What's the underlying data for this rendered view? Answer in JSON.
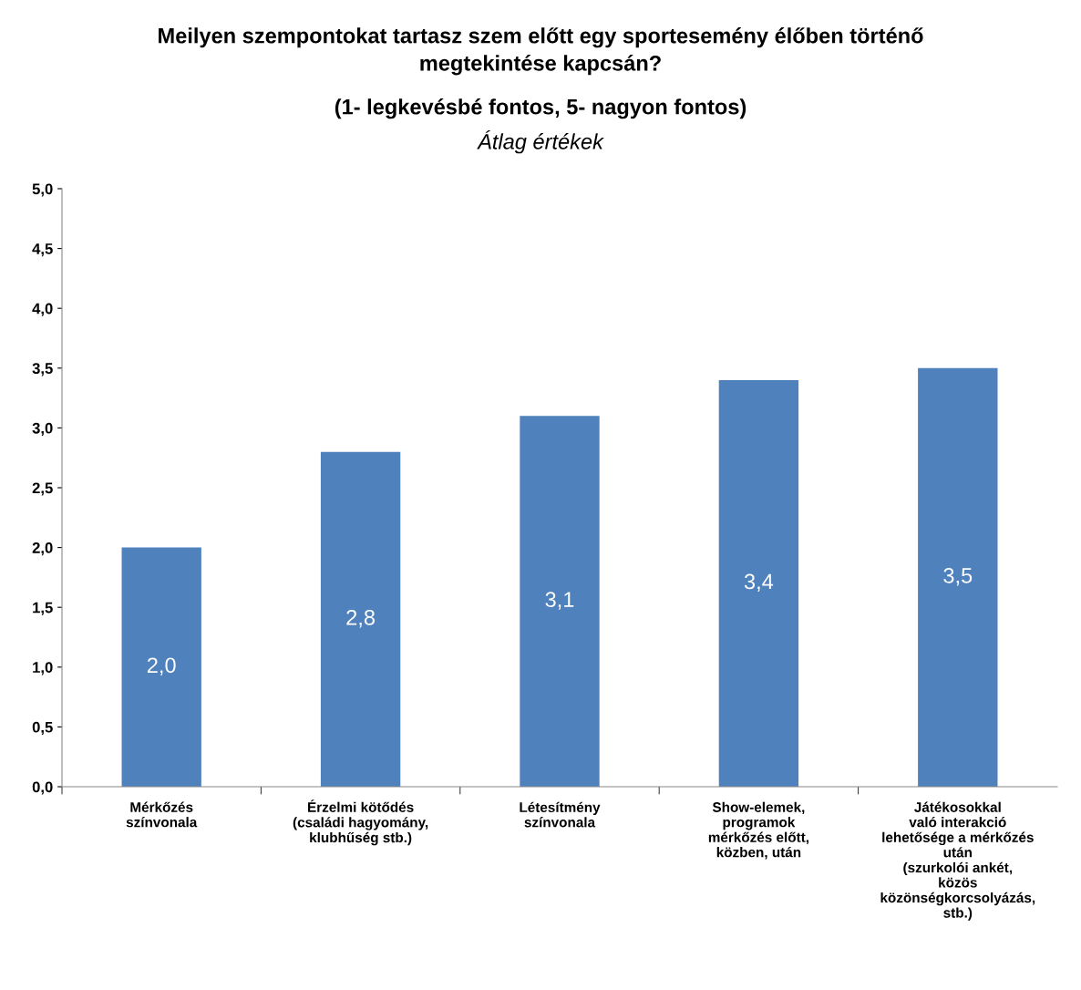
{
  "chart_data": {
    "type": "bar",
    "title": "Meilyen szempontokat tartasz szem előtt egy sportesemény élőben történő\nmegtekintése kapcsán?",
    "subtitle": "(1- legkevésbé fontos, 5- nagyon fontos)",
    "annotations": [
      "Átlag értékek"
    ],
    "categories": [
      "Mérkőzés\nszínvonala",
      "Érzelmi kötődés\n(családi hagyomány,\nklubhűség stb.)",
      "Létesítmény\nszínvonala",
      "Show-elemek,\nprogramok\nmérkőzés előtt,\nközben, után",
      "Játékosokkal\nvaló interakció\nlehetősége a mérkőzés\nután\n(szurkolói ankét,\nközös\nközönségkorcsolyázás,\nstb.)"
    ],
    "values": [
      2.0,
      2.8,
      3.1,
      3.4,
      3.5
    ],
    "value_labels": [
      "2,0",
      "2,8",
      "3,1",
      "3,4",
      "3,5"
    ],
    "color": "#4f81bd",
    "ylim": [
      0,
      5
    ],
    "yticks": [
      {
        "value": 0,
        "label": "0,0"
      },
      {
        "value": 0.5,
        "label": "0,5"
      },
      {
        "value": 1,
        "label": "1,0"
      },
      {
        "value": 1.5,
        "label": "1,5"
      },
      {
        "value": 2,
        "label": "2,0"
      },
      {
        "value": 2.5,
        "label": "2,5"
      },
      {
        "value": 3,
        "label": "3,0"
      },
      {
        "value": 3.5,
        "label": "3,5"
      },
      {
        "value": 4,
        "label": "4,0"
      },
      {
        "value": 4.5,
        "label": "4,5"
      },
      {
        "value": 5,
        "label": "5,0"
      }
    ],
    "grid": false,
    "legend": false
  }
}
